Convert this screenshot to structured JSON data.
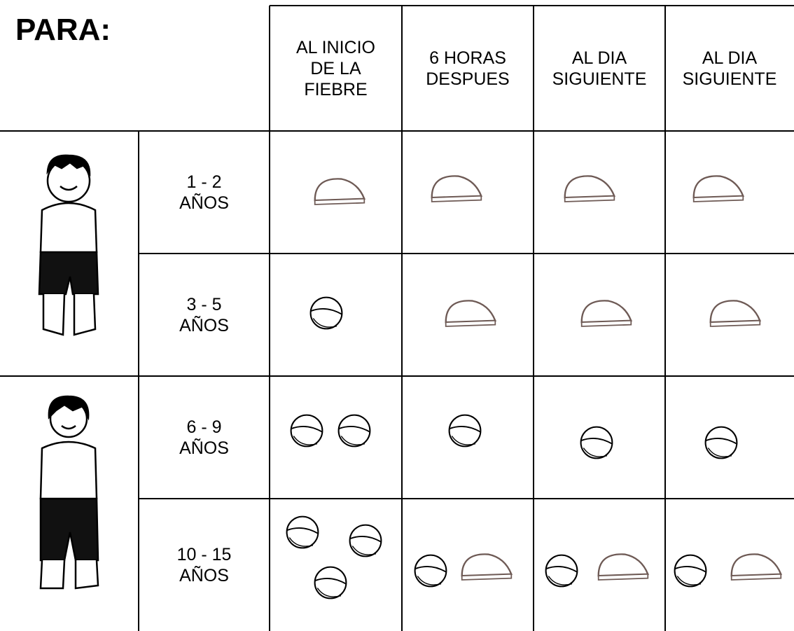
{
  "header": {
    "title": "PARA:",
    "columns": [
      [
        "AL INICIO",
        "DE LA",
        "FIEBRE"
      ],
      [
        "6 HORAS",
        "DESPUES"
      ],
      [
        "AL DIA",
        "SIGUIENTE"
      ],
      [
        "AL DIA",
        "SIGUIENTE"
      ]
    ]
  },
  "rows": [
    [
      "1 - 2",
      "AÑOS"
    ],
    [
      "3 - 5",
      "AÑOS"
    ],
    [
      "6 - 9",
      "AÑOS"
    ],
    [
      "10 - 15",
      "AÑOS"
    ]
  ]
}
